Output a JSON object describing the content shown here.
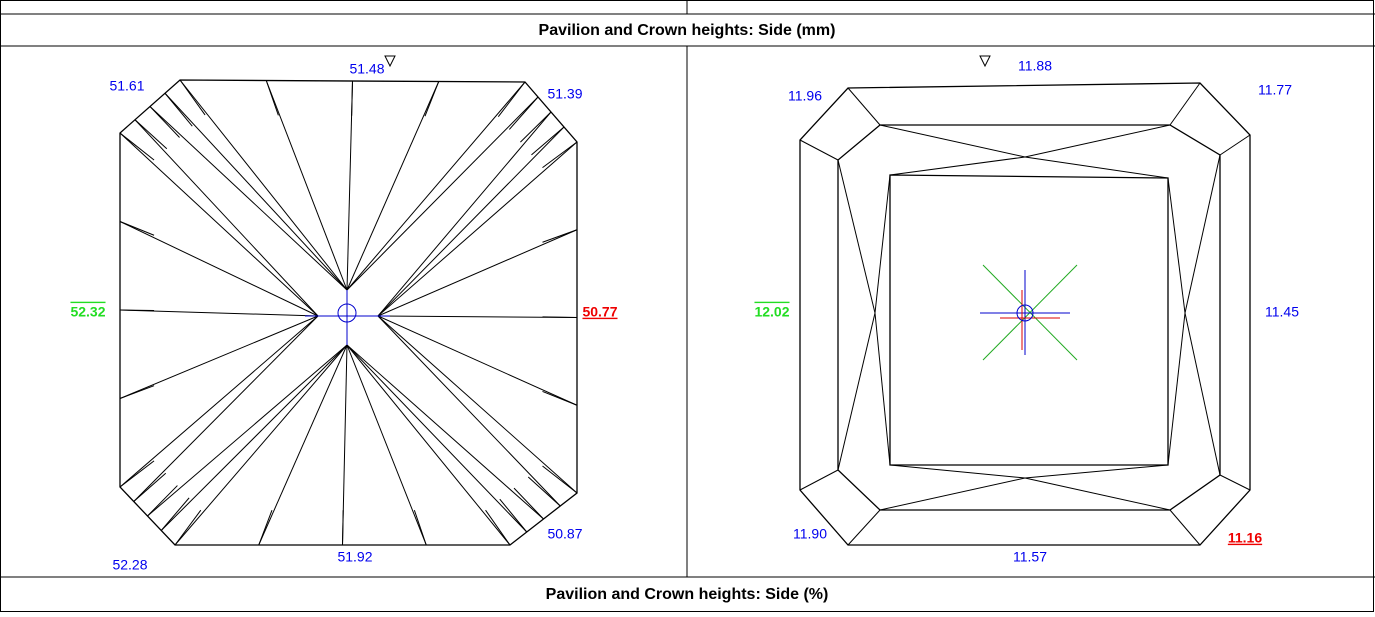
{
  "sections": [
    {
      "title": "Pavilion and Crown heights: Side (mm)"
    },
    {
      "title": "Pavilion and Crown heights: Side (%)"
    }
  ],
  "pavilion": {
    "labels": {
      "top": "51.48",
      "top_left": "51.61",
      "top_right": "51.39",
      "left": "52.32",
      "right": "50.77",
      "bottom_left": "52.28",
      "bottom": "51.92",
      "bottom_right": "50.87"
    }
  },
  "crown": {
    "labels": {
      "top": "11.88",
      "top_left": "11.96",
      "top_right": "11.77",
      "left": "12.02",
      "right": "11.45",
      "bottom_left": "11.90",
      "bottom": "11.57",
      "bottom_right": "11.16"
    }
  }
}
